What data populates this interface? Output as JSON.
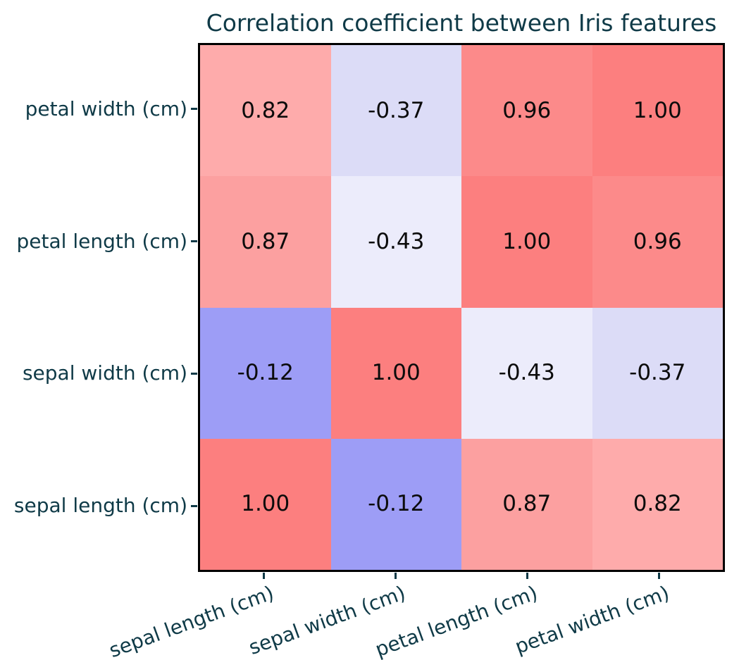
{
  "figure": {
    "background_color": "#ffffff",
    "frame_color": "#000000",
    "axis_text_color": "#0f3a47",
    "value_text_color": "#0b0b0b"
  },
  "chart_data": {
    "type": "heatmap",
    "title": "Correlation coefficient between Iris features",
    "x_tick_labels": [
      "sepal length (cm)",
      "sepal width (cm)",
      "petal length (cm)",
      "petal width (cm)"
    ],
    "y_tick_labels_top_to_bottom": [
      "petal width (cm)",
      "petal length (cm)",
      "sepal width (cm)",
      "sepal length (cm)"
    ],
    "x_tick_label_rotation_deg": 20,
    "grid_rows_top_to_bottom": [
      {
        "row_label": "petal width (cm)",
        "values": [
          0.82,
          -0.37,
          0.96,
          1.0
        ],
        "display": [
          "0.82",
          "-0.37",
          "0.96",
          "1.00"
        ],
        "cell_colors": [
          "#feabab",
          "#dcdcf7",
          "#fc8a8a",
          "#fc7f7f"
        ]
      },
      {
        "row_label": "petal length (cm)",
        "values": [
          0.87,
          -0.43,
          1.0,
          0.96
        ],
        "display": [
          "0.87",
          "-0.43",
          "1.00",
          "0.96"
        ],
        "cell_colors": [
          "#fca0a0",
          "#ececfb",
          "#fc7f7f",
          "#fc8a8a"
        ]
      },
      {
        "row_label": "sepal width (cm)",
        "values": [
          -0.12,
          1.0,
          -0.43,
          -0.37
        ],
        "display": [
          "-0.12",
          "1.00",
          "-0.43",
          "-0.37"
        ],
        "cell_colors": [
          "#9d9df6",
          "#fc7f7f",
          "#ececfb",
          "#dcdcf7"
        ]
      },
      {
        "row_label": "sepal length (cm)",
        "values": [
          1.0,
          -0.12,
          0.87,
          0.82
        ],
        "display": [
          "1.00",
          "-0.12",
          "0.87",
          "0.82"
        ],
        "cell_colors": [
          "#fc7f7f",
          "#9d9df6",
          "#fca0a0",
          "#feabab"
        ]
      }
    ]
  }
}
